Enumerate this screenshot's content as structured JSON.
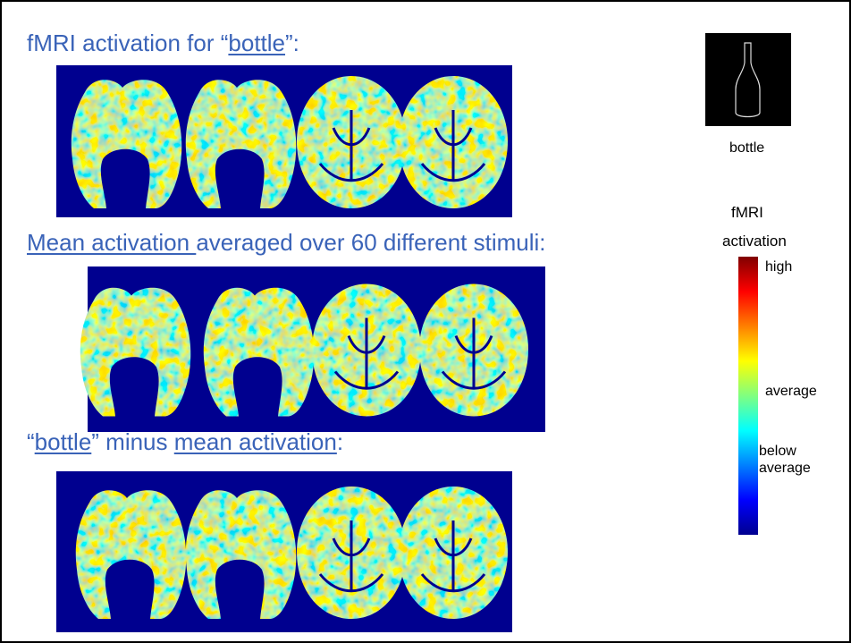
{
  "slide": {
    "sections": [
      {
        "title": [
          "fMRI activation for “",
          "bottle",
          "”:"
        ]
      },
      {
        "title": [
          "Mean activation ",
          "averaged over 60 different stimuli:"
        ]
      },
      {
        "title": [
          "“",
          "bottle",
          "” minus ",
          "mean activation",
          ":"
        ]
      }
    ],
    "stimulus_label": "bottle",
    "legend": {
      "title": [
        "fMRI",
        "activation"
      ],
      "labels": [
        "high",
        "average",
        "below",
        "average"
      ]
    }
  }
}
